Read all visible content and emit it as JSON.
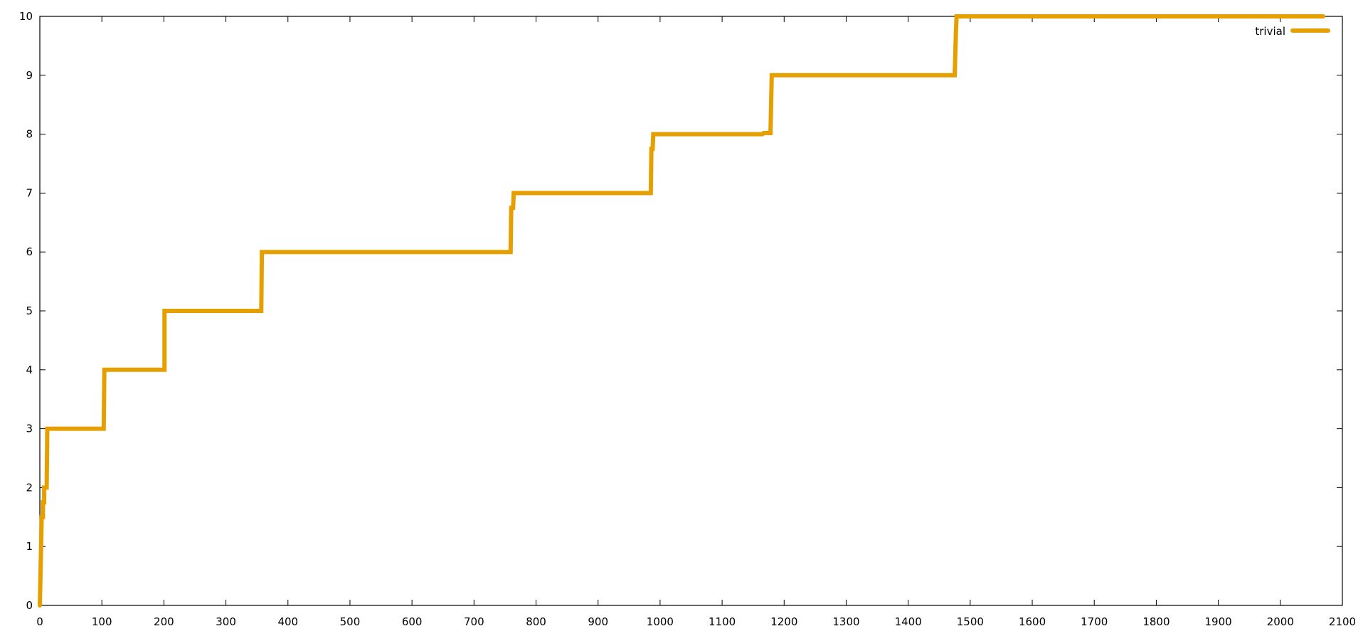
{
  "chart_data": {
    "type": "line",
    "title": "",
    "xlabel": "",
    "ylabel": "",
    "xlim": [
      0,
      2100
    ],
    "ylim": [
      0,
      10
    ],
    "x_ticks": [
      0,
      100,
      200,
      300,
      400,
      500,
      600,
      700,
      800,
      900,
      1000,
      1100,
      1200,
      1300,
      1400,
      1500,
      1600,
      1700,
      1800,
      1900,
      2000,
      2100
    ],
    "y_ticks": [
      0,
      1,
      2,
      3,
      4,
      5,
      6,
      7,
      8,
      9,
      10
    ],
    "grid": false,
    "legend": "top-right",
    "series": [
      {
        "name": "trivial",
        "color": "#e69f00",
        "points": [
          [
            0,
            0
          ],
          [
            2,
            1
          ],
          [
            3,
            1.5
          ],
          [
            5,
            1.5
          ],
          [
            5,
            1.75
          ],
          [
            7,
            1.75
          ],
          [
            7,
            2
          ],
          [
            11,
            2
          ],
          [
            12,
            3
          ],
          [
            103,
            3
          ],
          [
            104,
            4
          ],
          [
            115,
            4
          ],
          [
            118,
            4
          ],
          [
            201,
            4
          ],
          [
            201,
            5
          ],
          [
            218,
            5
          ],
          [
            357,
            5
          ],
          [
            358,
            6
          ],
          [
            390,
            6
          ],
          [
            759,
            6
          ],
          [
            760,
            6.75
          ],
          [
            763,
            6.75
          ],
          [
            764,
            7
          ],
          [
            870,
            7
          ],
          [
            985,
            7
          ],
          [
            986,
            7.75
          ],
          [
            988,
            7.75
          ],
          [
            989,
            8
          ],
          [
            1165,
            8
          ],
          [
            1167,
            8.02
          ],
          [
            1178,
            8.02
          ],
          [
            1180,
            9
          ],
          [
            1475,
            9
          ],
          [
            1477,
            9.75
          ],
          [
            1478,
            10
          ],
          [
            2069,
            10
          ]
        ]
      }
    ]
  }
}
